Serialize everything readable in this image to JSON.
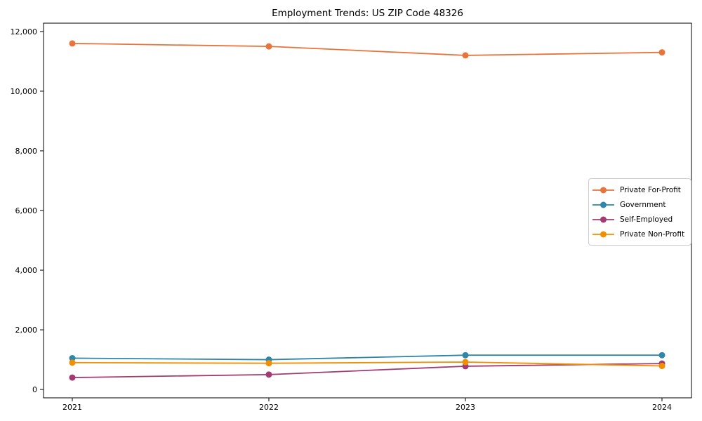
{
  "chart_data": {
    "type": "line",
    "title": "Employment Trends: US ZIP Code 48326",
    "xlabel": "",
    "ylabel": "",
    "categories": [
      "2021",
      "2022",
      "2023",
      "2024"
    ],
    "series": [
      {
        "name": "Private For-Profit",
        "color": "#E8743B",
        "values": [
          11600,
          11500,
          11200,
          11300
        ]
      },
      {
        "name": "Government",
        "color": "#2E86AB",
        "values": [
          1050,
          1000,
          1150,
          1150
        ]
      },
      {
        "name": "Self-Employed",
        "color": "#A23B72",
        "values": [
          400,
          500,
          780,
          870
        ]
      },
      {
        "name": "Private Non-Profit",
        "color": "#F18F01",
        "values": [
          900,
          880,
          920,
          790
        ]
      }
    ],
    "ylim": [
      -280,
      12280
    ],
    "yticks": [
      0,
      2000,
      4000,
      6000,
      8000,
      10000,
      12000
    ],
    "ytick_labels": [
      "0",
      "2,000",
      "4,000",
      "6,000",
      "8,000",
      "10,000",
      "12,000"
    ],
    "grid": false,
    "legend_position": "center-right",
    "marker": "circle"
  }
}
